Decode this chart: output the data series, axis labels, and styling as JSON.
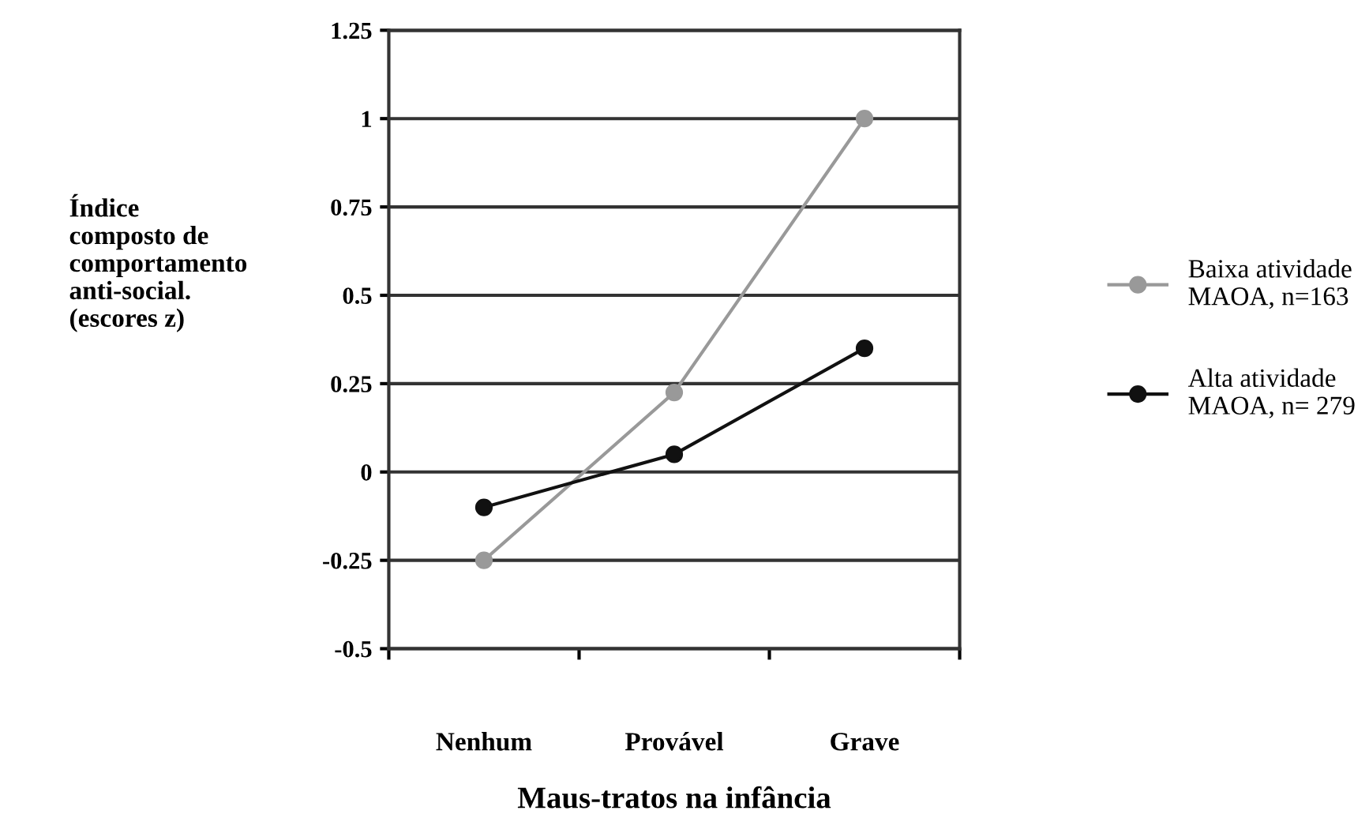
{
  "chart_data": {
    "type": "line",
    "xlabel": "Maus-tratos na infância",
    "ylabel": "Índice\ncomposto de\ncomportamento\nanti-social.\n(escores z)",
    "categories": [
      "Nenhum",
      "Provável",
      "Grave"
    ],
    "series": [
      {
        "name": "Baixa atividade\nMAOA, n=163",
        "color": "#999999",
        "values": [
          -0.25,
          0.225,
          1.0
        ]
      },
      {
        "name": "Alta atividade\nMAOA, n= 279",
        "color": "#111111",
        "values": [
          -0.1,
          0.05,
          0.35
        ]
      }
    ],
    "ylim": [
      -0.5,
      1.25
    ],
    "yticks": [
      -0.5,
      -0.25,
      0,
      0.25,
      0.5,
      0.75,
      1,
      1.25
    ],
    "grid": "y",
    "legend": "right",
    "marker": "circle",
    "line_style": "solid"
  }
}
